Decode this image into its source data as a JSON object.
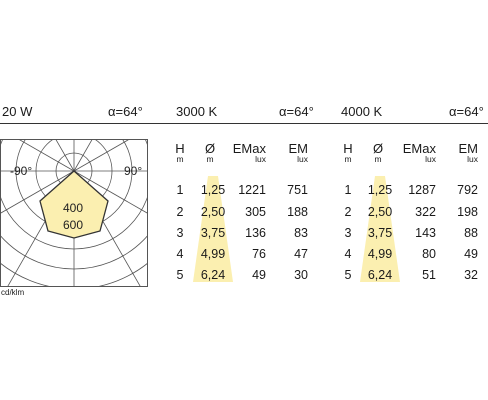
{
  "header": {
    "power": "20 W",
    "alpha_left": "α=64°",
    "cct_3000": "3000 K",
    "alpha_mid": "α=64°",
    "cct_4000": "4000 K",
    "alpha_right": "α=64°"
  },
  "polar": {
    "label_left": "-90°",
    "label_right": "90°",
    "ring_400": "400",
    "ring_600": "600",
    "unit": "cd/klm",
    "colors": {
      "beam_fill": "#fbefb0",
      "grid": "#555555"
    }
  },
  "columns": {
    "h": {
      "label": "H",
      "unit": "m"
    },
    "d": {
      "label": "Ø",
      "unit": "m"
    },
    "emax": {
      "label": "EMax",
      "unit": "lux"
    },
    "em": {
      "label": "EM",
      "unit": "lux"
    }
  },
  "table_3000": [
    {
      "h": "1",
      "d": "1,25",
      "emax": "1221",
      "em": "751"
    },
    {
      "h": "2",
      "d": "2,50",
      "emax": "305",
      "em": "188"
    },
    {
      "h": "3",
      "d": "3,75",
      "emax": "136",
      "em": "83"
    },
    {
      "h": "4",
      "d": "4,99",
      "emax": "76",
      "em": "47"
    },
    {
      "h": "5",
      "d": "6,24",
      "emax": "49",
      "em": "30"
    }
  ],
  "table_4000": [
    {
      "h": "1",
      "d": "1,25",
      "emax": "1287",
      "em": "792"
    },
    {
      "h": "2",
      "d": "2,50",
      "emax": "322",
      "em": "198"
    },
    {
      "h": "3",
      "d": "3,75",
      "emax": "143",
      "em": "88"
    },
    {
      "h": "4",
      "d": "4,99",
      "emax": "80",
      "em": "49"
    },
    {
      "h": "5",
      "d": "6,24",
      "emax": "51",
      "em": "32"
    }
  ],
  "cone_color": "#fbefb0"
}
